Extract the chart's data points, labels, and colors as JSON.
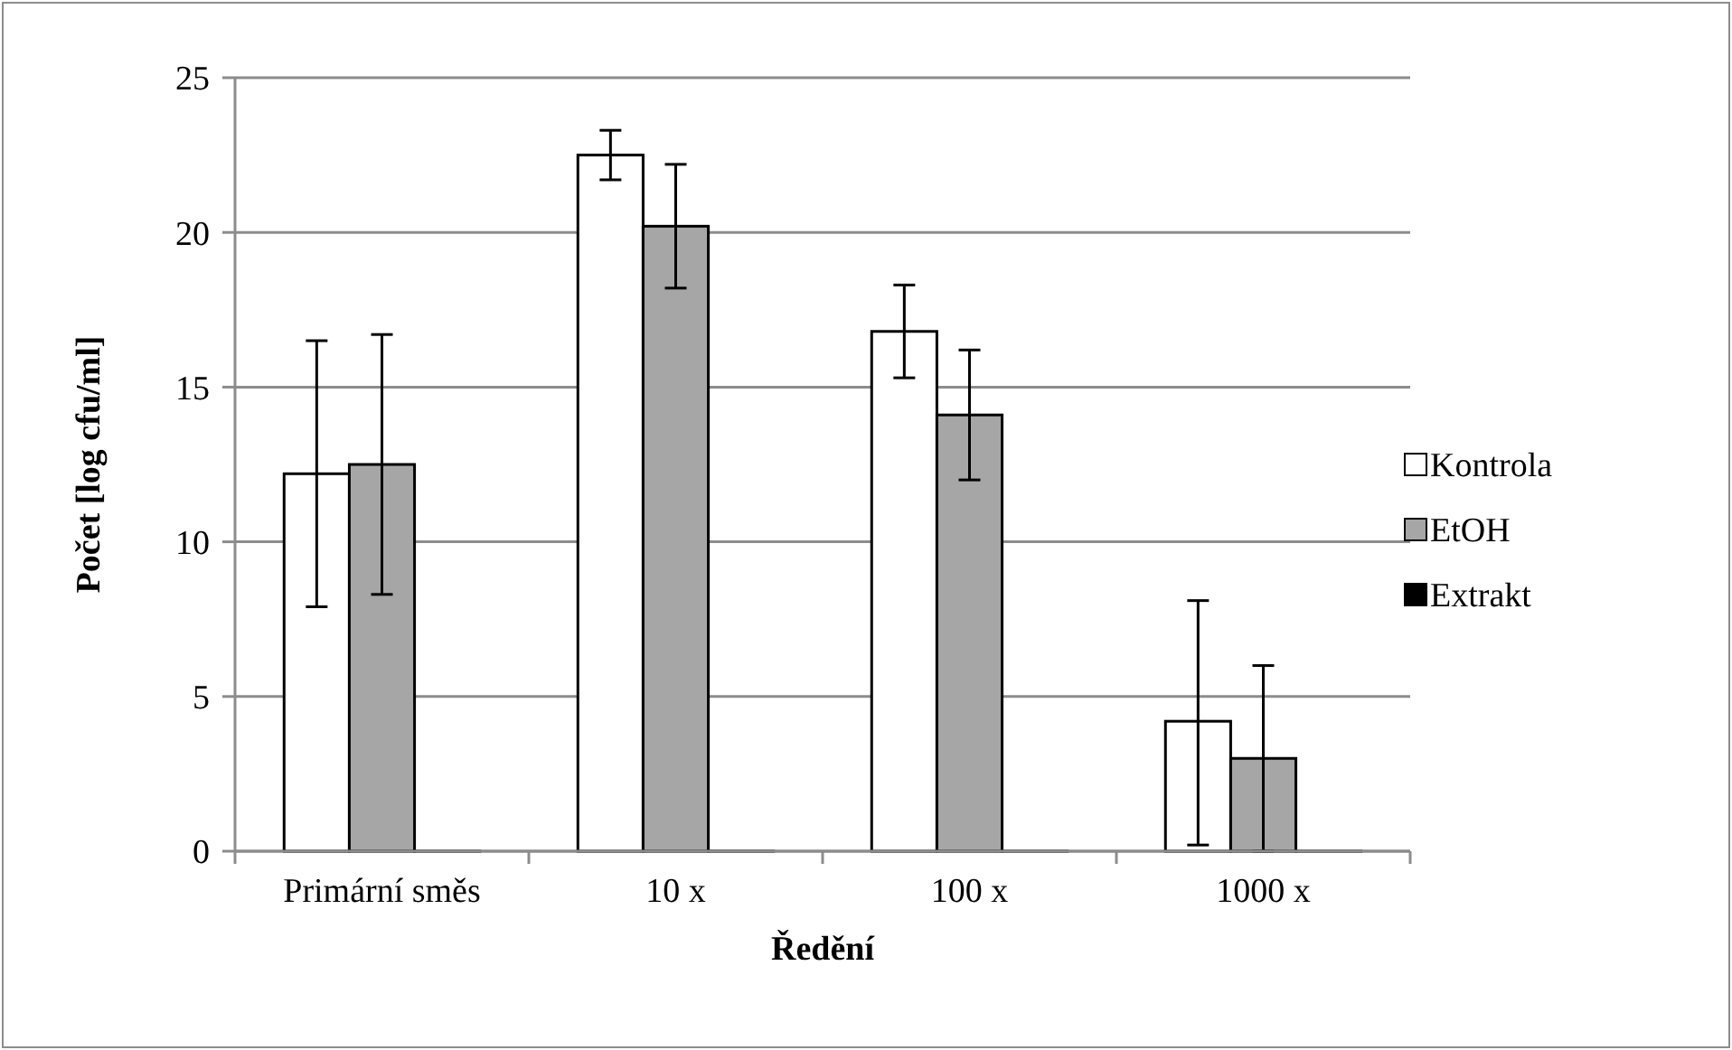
{
  "chart_data": {
    "type": "bar",
    "xlabel": "Ředění",
    "ylabel": "Počet [log cfu/ml]",
    "categories": [
      "Primární směs",
      "10 x",
      "100 x",
      "1000 x"
    ],
    "series": [
      {
        "name": "Kontrola",
        "color": "#ffffff",
        "values": [
          12.2,
          22.5,
          16.8,
          4.2
        ],
        "errors": [
          [
            7.9,
            16.5
          ],
          [
            21.7,
            23.3
          ],
          [
            15.3,
            18.3
          ],
          [
            0.2,
            8.1
          ]
        ]
      },
      {
        "name": "EtOH",
        "color": "#a6a6a6",
        "values": [
          12.5,
          20.2,
          14.1,
          3.0
        ],
        "errors": [
          [
            8.3,
            16.7
          ],
          [
            18.2,
            22.2
          ],
          [
            12.0,
            16.2
          ],
          [
            0,
            6.0
          ]
        ]
      },
      {
        "name": "Extrakt",
        "color": "#000000",
        "values": [
          0,
          0,
          0,
          0
        ]
      }
    ],
    "ylim": [
      0,
      25
    ],
    "yticks": [
      0,
      5,
      10,
      15,
      20,
      25
    ],
    "grid": "y",
    "legend": "right"
  }
}
